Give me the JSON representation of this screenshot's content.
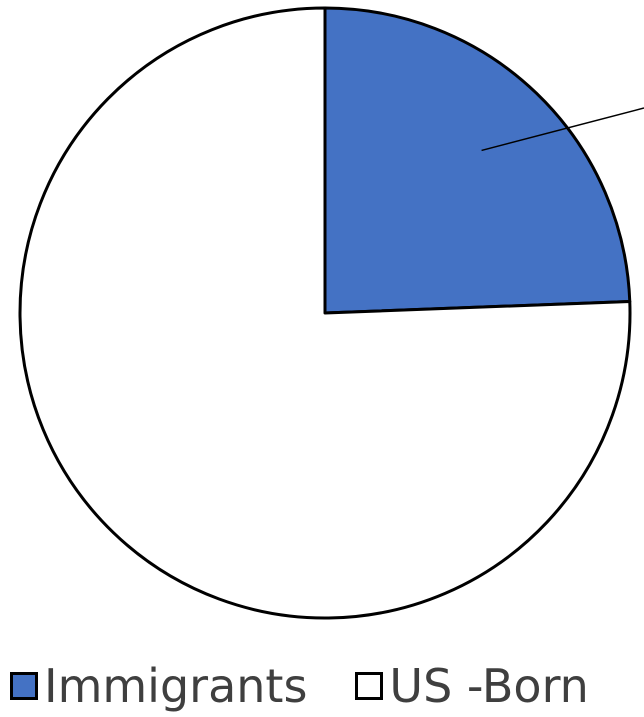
{
  "chart_data": {
    "type": "pie",
    "title": "",
    "start_angle_deg": 0,
    "direction": "clockwise",
    "series": [
      {
        "categories": [
          "Immigrants",
          "US -Born"
        ],
        "values": [
          24.4,
          75.6
        ],
        "colors": [
          "#4472c4",
          "#ffffff"
        ]
      }
    ],
    "outline_color": "#000000",
    "leader_line": true,
    "legend": {
      "position": "bottom-left",
      "entries": [
        {
          "label": "Immigrants",
          "color": "#4472c4"
        },
        {
          "label": "US -Born",
          "color": "#ffffff"
        }
      ]
    }
  }
}
